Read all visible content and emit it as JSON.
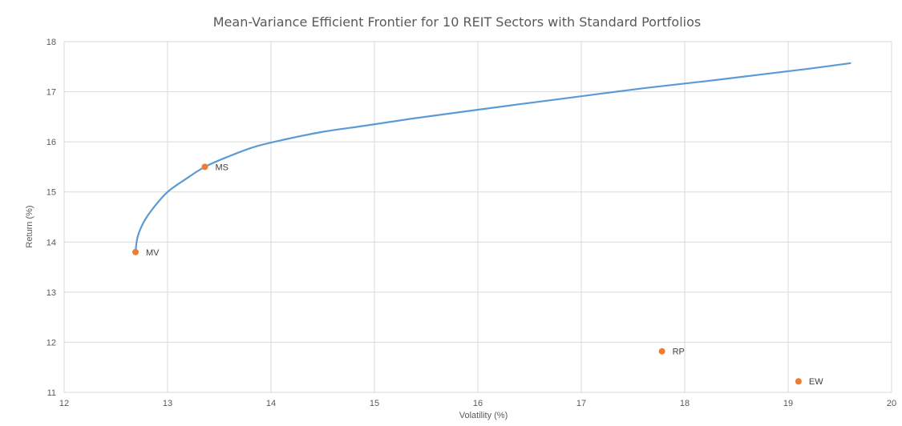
{
  "chart_data": {
    "type": "scatter",
    "title": "Mean-Variance Efficient Frontier for 10 REIT Sectors with Standard Portfolios",
    "xlabel": "Volatility (%)",
    "ylabel": "Return (%)",
    "xlim": [
      12,
      20
    ],
    "ylim": [
      11,
      18
    ],
    "x_ticks": [
      12,
      13,
      14,
      15,
      16,
      17,
      18,
      19,
      20
    ],
    "y_ticks": [
      11,
      12,
      13,
      14,
      15,
      16,
      17,
      18
    ],
    "grid": true,
    "colors": {
      "frontier": "#5b9bd5",
      "points": "#ed7d31",
      "grid": "#d9d9d9",
      "text": "#595959"
    },
    "series": [
      {
        "type": "line",
        "x": [
          12.69,
          12.71,
          12.77,
          12.87,
          13.0,
          13.17,
          13.36,
          13.58,
          13.84,
          14.14,
          14.5,
          14.9,
          15.35,
          15.85,
          16.4,
          17.0,
          17.6,
          18.2,
          18.8,
          19.2,
          19.6
        ],
        "y": [
          13.8,
          14.1,
          14.4,
          14.7,
          15.0,
          15.25,
          15.5,
          15.7,
          15.9,
          16.05,
          16.2,
          16.32,
          16.46,
          16.6,
          16.75,
          16.91,
          17.07,
          17.21,
          17.36,
          17.46,
          17.57
        ]
      },
      {
        "type": "scatter",
        "points": [
          {
            "label": "MV",
            "x": 12.69,
            "y": 13.8
          },
          {
            "label": "MS",
            "x": 13.36,
            "y": 15.5
          },
          {
            "label": "RP",
            "x": 17.78,
            "y": 11.82
          },
          {
            "label": "EW",
            "x": 19.1,
            "y": 11.22
          }
        ]
      }
    ]
  }
}
